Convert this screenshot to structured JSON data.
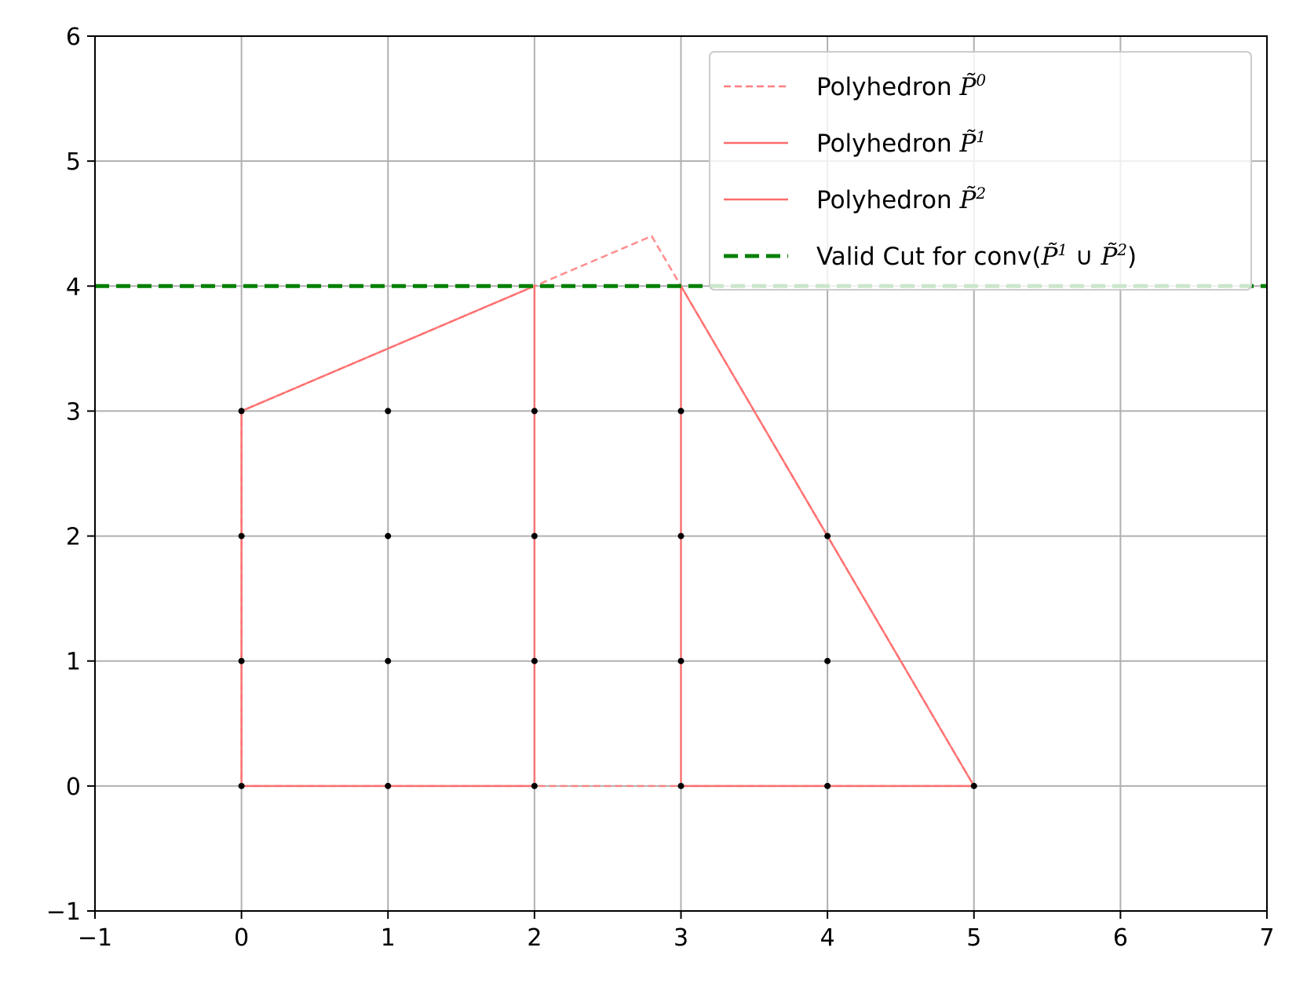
{
  "chart_data": {
    "type": "line",
    "xlim": [
      -1,
      7
    ],
    "ylim": [
      -1,
      6
    ],
    "xticks": [
      -1,
      0,
      1,
      2,
      3,
      4,
      5,
      6,
      7
    ],
    "yticks": [
      -1,
      0,
      1,
      2,
      3,
      4,
      5,
      6
    ],
    "xtick_labels": [
      "−1",
      "0",
      "1",
      "2",
      "3",
      "4",
      "5",
      "6",
      "7"
    ],
    "ytick_labels": [
      "−1",
      "0",
      "1",
      "2",
      "3",
      "4",
      "5",
      "6"
    ],
    "grid": true,
    "legend_position": "top-right",
    "title": "",
    "xlabel": "",
    "ylabel": "",
    "series": [
      {
        "name": "Polyhedron P̃0",
        "legend_prefix": "Polyhedron ",
        "legend_math": "P̃",
        "legend_sup": "0",
        "color": "#ff7f7f",
        "dash": "dashed",
        "x": [
          0,
          0,
          5,
          2.8,
          0
        ],
        "y": [
          0,
          3,
          0,
          4.4,
          3
        ],
        "path_x": [
          0,
          5,
          2.8,
          0,
          0
        ],
        "path_y": [
          0,
          0,
          4.4,
          3,
          0
        ]
      },
      {
        "name": "Polyhedron P̃1",
        "legend_prefix": "Polyhedron ",
        "legend_math": "P̃",
        "legend_sup": "1",
        "color": "#ff6b6b",
        "dash": "solid",
        "path_x": [
          0,
          2,
          2,
          0,
          0
        ],
        "path_y": [
          0,
          0,
          4,
          3,
          0
        ]
      },
      {
        "name": "Polyhedron P̃2",
        "legend_prefix": "Polyhedron ",
        "legend_math": "P̃",
        "legend_sup": "2",
        "color": "#ff6b6b",
        "dash": "solid",
        "path_x": [
          3,
          5,
          3,
          3
        ],
        "path_y": [
          0,
          0,
          4,
          0
        ]
      },
      {
        "name": "Valid Cut for conv(P̃1 ∪ P̃2)",
        "legend_prefix": "Valid Cut for conv(",
        "legend_math": "P̃",
        "legend_sup": "1",
        "legend_union": " ∪ ",
        "legend_math2": "P̃",
        "legend_sup2": "2",
        "legend_suffix": ")",
        "color": "#008000",
        "dash": "bold-dashed",
        "path_x": [
          -1,
          7
        ],
        "path_y": [
          4,
          4
        ]
      }
    ],
    "integer_points": {
      "color": "#000000",
      "x": [
        0,
        0,
        0,
        0,
        1,
        1,
        1,
        1,
        2,
        2,
        2,
        2,
        3,
        3,
        3,
        3,
        4,
        4,
        4,
        5
      ],
      "y": [
        0,
        1,
        2,
        3,
        0,
        1,
        2,
        3,
        0,
        1,
        2,
        3,
        0,
        1,
        2,
        3,
        0,
        1,
        2,
        0
      ]
    }
  }
}
